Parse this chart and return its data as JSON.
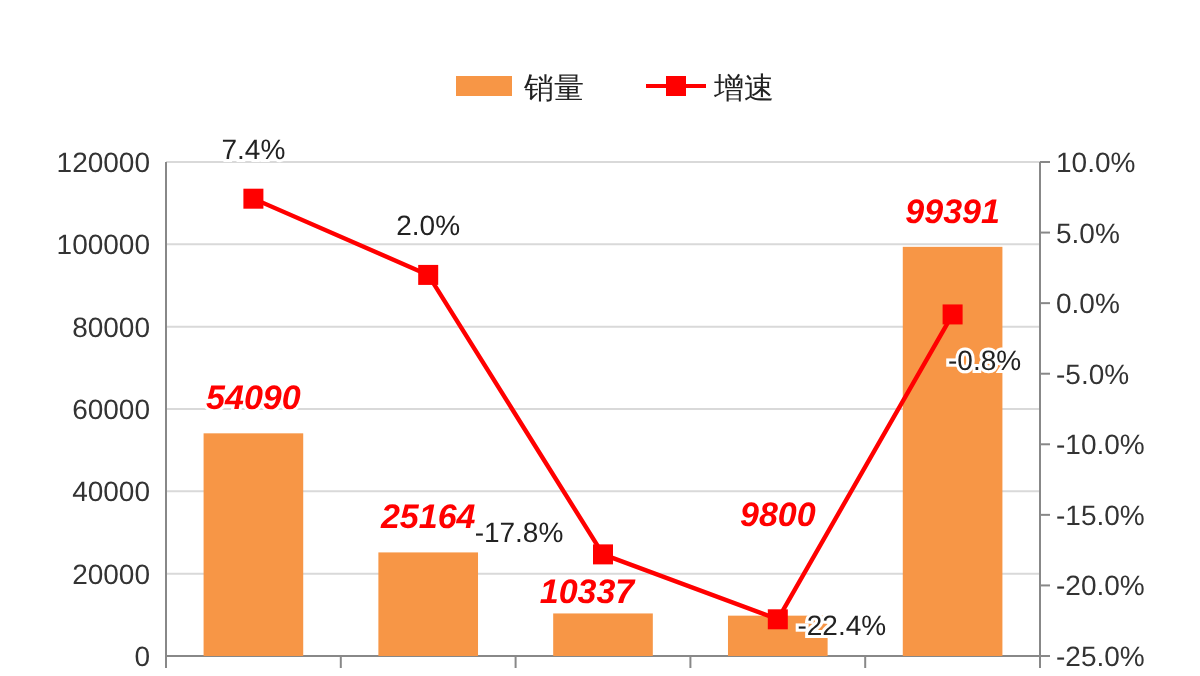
{
  "chart_data": {
    "type": "bar",
    "categories": [
      null,
      null,
      null,
      null,
      null
    ],
    "series": [
      {
        "name": "销量",
        "color": "#f79646",
        "values": [
          54090,
          25164,
          10337,
          9800,
          99391
        ],
        "value_labels": [
          "54090",
          "25164",
          "10337",
          "9800",
          "99391"
        ]
      },
      {
        "name": "增速",
        "type": "line",
        "axis": "y2",
        "color": "#ff0000",
        "values": [
          7.4,
          2.0,
          -17.8,
          -22.4,
          -0.8
        ],
        "value_labels": [
          "7.4%",
          "2.0%",
          "-17.8%",
          "-22.4%",
          "-0.8%"
        ]
      }
    ],
    "ylim": [
      0,
      120000
    ],
    "yticks": [
      0,
      20000,
      40000,
      60000,
      80000,
      100000,
      120000
    ],
    "y2lim": [
      -25,
      10
    ],
    "y2ticks": [
      {
        "value": -25,
        "label": "-25.0%"
      },
      {
        "value": -20,
        "label": "-20.0%"
      },
      {
        "value": -15,
        "label": "-15.0%"
      },
      {
        "value": -10,
        "label": "-10.0%"
      },
      {
        "value": -5,
        "label": "-5.0%"
      },
      {
        "value": 0,
        "label": "0.0%"
      },
      {
        "value": 5,
        "label": "5.0%"
      },
      {
        "value": 10,
        "label": "10.0%"
      }
    ],
    "grid": "y",
    "legend": "top",
    "marker": "square",
    "line_style": "solid"
  }
}
